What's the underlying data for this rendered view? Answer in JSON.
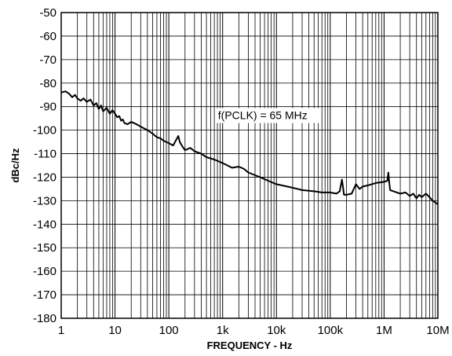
{
  "chart_data": {
    "type": "line",
    "title": "",
    "xlabel": "FREQUENCY - Hz",
    "ylabel": "dBc/Hz",
    "x_scale": "log",
    "xlim": [
      1,
      10000000
    ],
    "ylim": [
      -180,
      -50
    ],
    "grid": true,
    "x_ticks": [
      1,
      10,
      100,
      1000,
      10000,
      100000,
      1000000,
      10000000
    ],
    "x_tick_labels": [
      "1",
      "10",
      "100",
      "1k",
      "10k",
      "100k",
      "1M",
      "10M"
    ],
    "y_ticks": [
      -50,
      -60,
      -70,
      -80,
      -90,
      -100,
      -110,
      -120,
      -130,
      -140,
      -150,
      -160,
      -170,
      -180
    ],
    "y_tick_labels": [
      "-50",
      "-60",
      "-70",
      "-80",
      "-90",
      "-100",
      "-110",
      "-120",
      "-130",
      "-140",
      "-150",
      "-160",
      "-170",
      "-180"
    ],
    "annotation": "f(PCLK) = 65 MHz",
    "series": [
      {
        "x": [
          1,
          1.2,
          1.4,
          1.6,
          1.8,
          2,
          2.3,
          2.6,
          3,
          3.5,
          4,
          4.5,
          5,
          5.5,
          6,
          7,
          8,
          9,
          10,
          11,
          12,
          13,
          14,
          15,
          17,
          20,
          25,
          30,
          40,
          50,
          60,
          70,
          80,
          100,
          120,
          150,
          160,
          180,
          200,
          250,
          300,
          400,
          500,
          700,
          1000,
          1500,
          2000,
          2500,
          3000,
          5000,
          7000,
          10000,
          20000,
          30000,
          50000,
          70000,
          100000,
          130000,
          150000,
          165000,
          180000,
          200000,
          250000,
          300000,
          350000,
          400000,
          500000,
          700000,
          1000000,
          1150000,
          1200000,
          1250000,
          1300000,
          1500000,
          2000000,
          2500000,
          3000000,
          3500000,
          4000000,
          4500000,
          5000000,
          6000000,
          7000000,
          8000000,
          10000000
        ],
        "y": [
          -84,
          -83.5,
          -84.5,
          -86,
          -85,
          -86.5,
          -87.5,
          -86.5,
          -88,
          -87,
          -89.5,
          -88.5,
          -91,
          -89.5,
          -92,
          -90.5,
          -93,
          -91.5,
          -93,
          -94.5,
          -94,
          -96,
          -95.5,
          -97,
          -97.5,
          -96.5,
          -97.5,
          -98.5,
          -100,
          -101.5,
          -103,
          -103.5,
          -104.5,
          -105.5,
          -106.5,
          -102.5,
          -105,
          -107,
          -108.5,
          -107.5,
          -109,
          -110,
          -111.5,
          -112.5,
          -114,
          -116,
          -115.5,
          -116.5,
          -118,
          -120,
          -121.5,
          -123,
          -124.5,
          -125.5,
          -126,
          -126.5,
          -126.5,
          -127,
          -126,
          -121,
          -127.5,
          -127.5,
          -127,
          -123,
          -125,
          -124,
          -123.5,
          -122.5,
          -122,
          -121.5,
          -118,
          -122.5,
          -125.5,
          -126,
          -127,
          -126.5,
          -128,
          -127,
          -129,
          -127.5,
          -128.5,
          -127,
          -128.5,
          -130,
          -131.5
        ]
      }
    ]
  }
}
